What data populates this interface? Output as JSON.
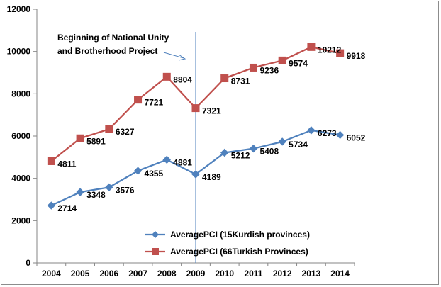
{
  "chart_data": {
    "type": "line",
    "categories": [
      "2004",
      "2005",
      "2006",
      "2007",
      "2008",
      "2009",
      "2010",
      "2011",
      "2012",
      "2013",
      "2014"
    ],
    "ylim": [
      0,
      12000
    ],
    "yticks": [
      "0",
      "2000",
      "4000",
      "6000",
      "8000",
      "10000",
      "12000"
    ],
    "grid": false,
    "legend_position": "bottom-right",
    "series": [
      {
        "name": "AveragePCI (15Kurdish provinces)",
        "color": "#4f81bd",
        "marker": "diamond",
        "values": [
          2714,
          3348,
          3576,
          4355,
          4881,
          4189,
          5212,
          5408,
          5734,
          6273,
          6052
        ],
        "labels": [
          "2714",
          "3348",
          "3576",
          "4355",
          "4881",
          "4189",
          "5212",
          "5408",
          "5734",
          "6273",
          "6052"
        ]
      },
      {
        "name": "AveragePCI (66Turkish Provinces)",
        "color": "#c0504d",
        "marker": "square",
        "values": [
          4811,
          5891,
          6327,
          7721,
          8804,
          7321,
          8731,
          9236,
          9574,
          10212,
          9918
        ],
        "labels": [
          "4811",
          "5891",
          "6327",
          "7721",
          "8804",
          "7321",
          "8731",
          "9236",
          "9574",
          "10212",
          "9918"
        ]
      }
    ],
    "annotation": {
      "lines": [
        "Beginning  of National Unity",
        "and Brotherhood  Project"
      ],
      "marker_category": "2009"
    },
    "reference_line_color": "#4f81bd"
  }
}
